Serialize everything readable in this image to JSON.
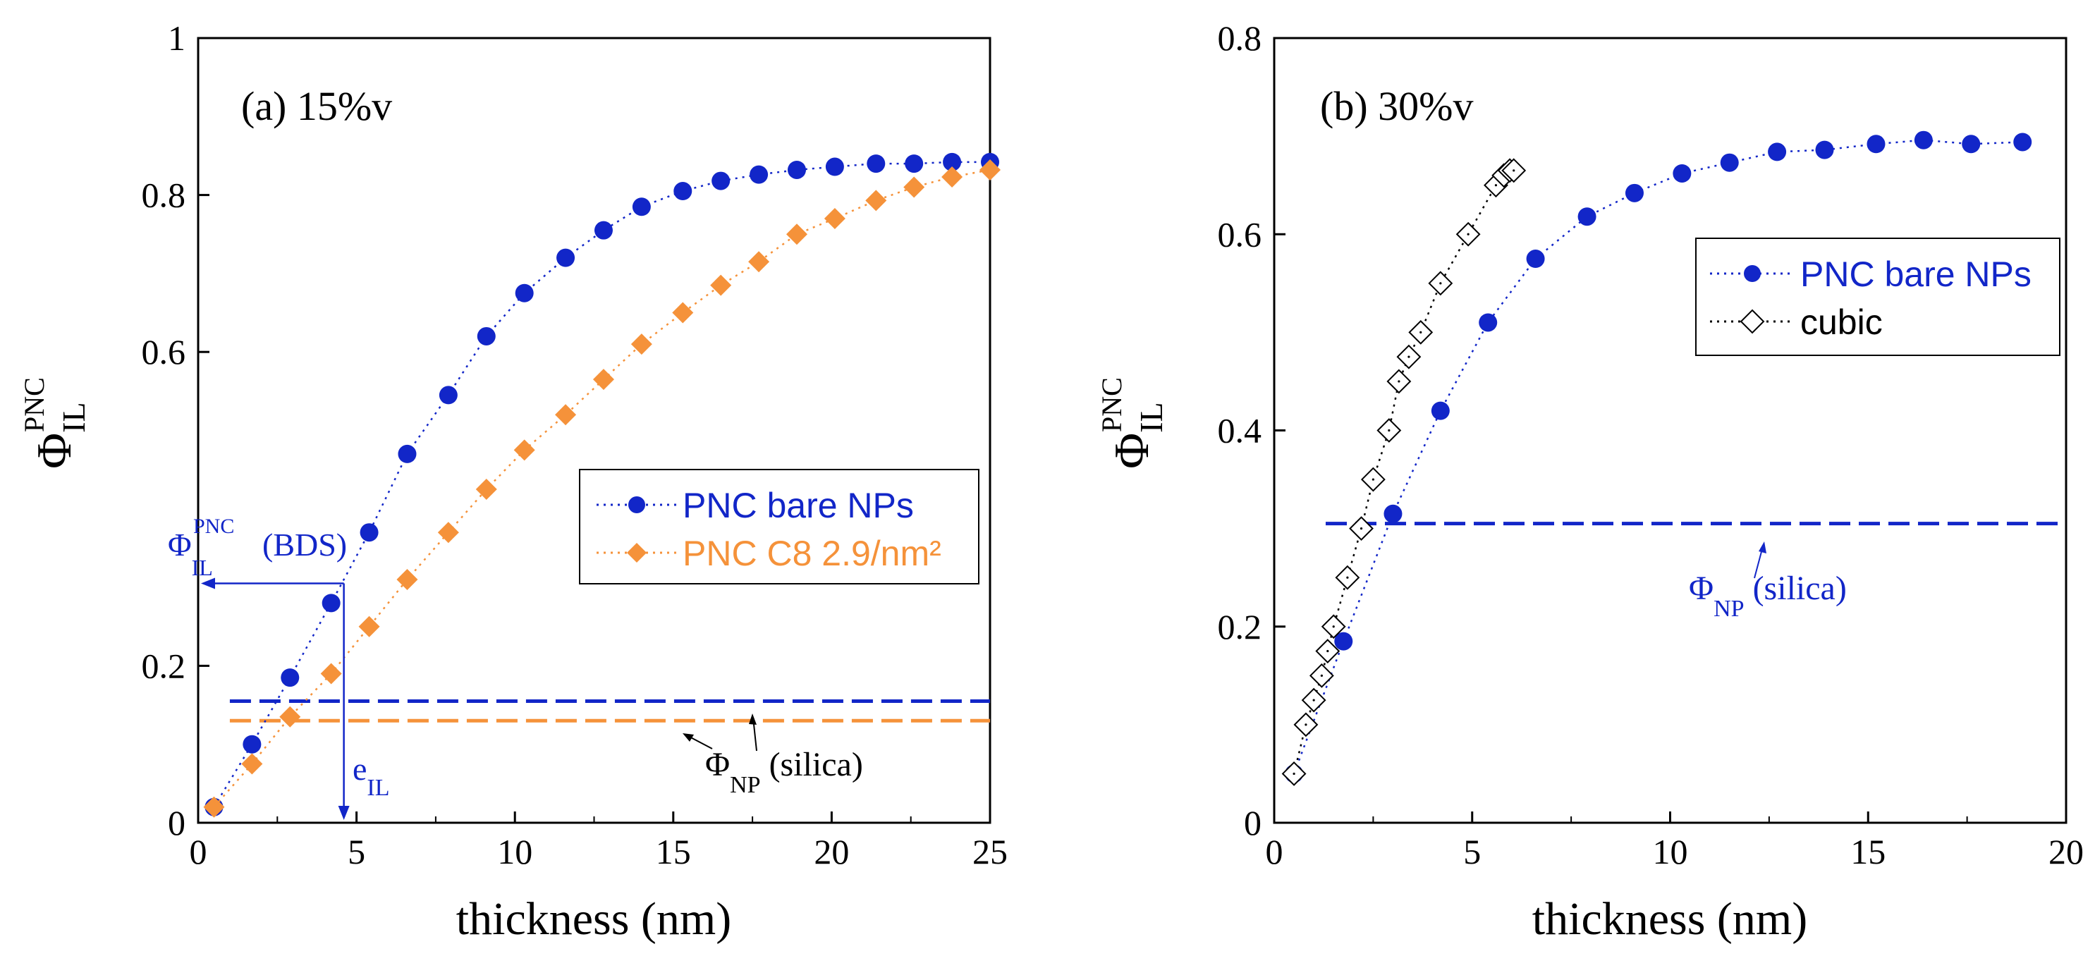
{
  "colors": {
    "blue": "#1226c8",
    "orange": "#f5923a",
    "black": "#000000"
  },
  "chart_data": [
    {
      "type": "scatter",
      "panel_label": "(a) 15%v",
      "xlabel": "thickness (nm)",
      "ylabel": {
        "main": "Φ",
        "sub": "IL",
        "sup": "PNC"
      },
      "xlim": [
        0,
        25
      ],
      "ylim": [
        0,
        1
      ],
      "xticks": [
        0,
        5,
        10,
        15,
        20,
        25
      ],
      "xtick_labels": [
        "0",
        "5",
        "10",
        "15",
        "20",
        "25"
      ],
      "yticks": [
        0,
        0.2,
        0.6,
        0.8,
        1
      ],
      "ytick_labels": [
        "0",
        "0.2",
        "0.6",
        "0.8",
        "1"
      ],
      "series": [
        {
          "name": "PNC bare NPs",
          "marker": "circle",
          "color": "#1226c8",
          "x": [
            0.5,
            1.7,
            2.9,
            4.2,
            5.4,
            6.6,
            7.9,
            9.1,
            10.3,
            11.6,
            12.8,
            14.0,
            15.3,
            16.5,
            17.7,
            18.9,
            20.1,
            21.4,
            22.6,
            23.8,
            25.0
          ],
          "y": [
            0.02,
            0.1,
            0.185,
            0.28,
            0.37,
            0.47,
            0.545,
            0.62,
            0.675,
            0.72,
            0.755,
            0.785,
            0.805,
            0.818,
            0.826,
            0.832,
            0.836,
            0.84,
            0.84,
            0.842,
            0.842
          ]
        },
        {
          "name": "PNC C8 2.9/nm²",
          "marker": "diamond",
          "color": "#f5923a",
          "x": [
            0.5,
            1.7,
            2.9,
            4.2,
            5.4,
            6.6,
            7.9,
            9.1,
            10.3,
            11.6,
            12.8,
            14.0,
            15.3,
            16.5,
            17.7,
            18.9,
            20.1,
            21.4,
            22.6,
            23.8,
            25.0
          ],
          "y": [
            0.02,
            0.075,
            0.135,
            0.19,
            0.25,
            0.31,
            0.37,
            0.425,
            0.475,
            0.52,
            0.565,
            0.61,
            0.65,
            0.685,
            0.715,
            0.75,
            0.77,
            0.793,
            0.81,
            0.823,
            0.832
          ]
        }
      ],
      "reference_lines": [
        {
          "name": "Φ_NP silica (bare)",
          "color": "#1226c8",
          "y": 0.155,
          "x": [
            1,
            25
          ]
        },
        {
          "name": "Φ_NP silica (C8)",
          "color": "#f5923a",
          "y": 0.13,
          "x": [
            1,
            25
          ]
        }
      ],
      "legend": {
        "position": "right-middle",
        "entries": [
          "PNC bare NPs",
          "PNC C8 2.9/nm²"
        ]
      },
      "annotations": {
        "bds_label": {
          "main": "Φ",
          "sub": "IL",
          "sup": "PNC",
          "suffix": "(BDS)"
        },
        "bds_value": 0.305,
        "eil_label": {
          "main": "e",
          "sub": "IL"
        },
        "eil_value": 4.6,
        "silica_label": {
          "main": "Φ",
          "sub": "NP",
          "suffix": " (silica)"
        }
      }
    },
    {
      "type": "scatter",
      "panel_label": "(b) 30%v",
      "xlabel": "thickness (nm)",
      "ylabel": {
        "main": "Φ",
        "sub": "IL",
        "sup": "PNC"
      },
      "xlim": [
        0,
        20
      ],
      "ylim": [
        0,
        0.8
      ],
      "xticks": [
        0,
        5,
        10,
        15,
        20
      ],
      "xtick_labels": [
        "0",
        "5",
        "10",
        "15",
        "20"
      ],
      "yticks": [
        0,
        0.2,
        0.4,
        0.6,
        0.8
      ],
      "ytick_labels": [
        "0",
        "0.2",
        "0.4",
        "0.6",
        "0.8"
      ],
      "series": [
        {
          "name": "PNC bare NPs",
          "marker": "circle",
          "color": "#1226c8",
          "x": [
            0.5,
            1.75,
            3.0,
            4.2,
            5.4,
            6.6,
            7.9,
            9.1,
            10.3,
            11.5,
            12.7,
            13.9,
            15.2,
            16.4,
            17.6,
            18.9
          ],
          "y": [
            0.05,
            0.185,
            0.315,
            0.42,
            0.51,
            0.575,
            0.618,
            0.642,
            0.662,
            0.673,
            0.684,
            0.686,
            0.692,
            0.696,
            0.692,
            0.694
          ]
        },
        {
          "name": "cubic",
          "marker": "open-diamond",
          "color": "#000000",
          "x": [
            0.5,
            0.8,
            1.0,
            1.2,
            1.35,
            1.5,
            1.85,
            2.2,
            2.5,
            2.9,
            3.15,
            3.4,
            3.7,
            4.2,
            4.9,
            5.6,
            5.8,
            5.95,
            6.05
          ],
          "y": [
            0.05,
            0.1,
            0.125,
            0.15,
            0.175,
            0.2,
            0.25,
            0.3,
            0.35,
            0.4,
            0.45,
            0.475,
            0.5,
            0.55,
            0.6,
            0.65,
            0.66,
            0.665,
            0.665
          ]
        }
      ],
      "reference_lines": [
        {
          "name": "Φ_NP silica",
          "color": "#1226c8",
          "y": 0.305,
          "x": [
            1.3,
            20
          ]
        }
      ],
      "legend": {
        "position": "right-upper",
        "entries": [
          "PNC bare NPs",
          "cubic"
        ]
      },
      "annotations": {
        "silica_label": {
          "main": "Φ",
          "sub": "NP",
          "suffix": " (silica)"
        }
      }
    }
  ]
}
